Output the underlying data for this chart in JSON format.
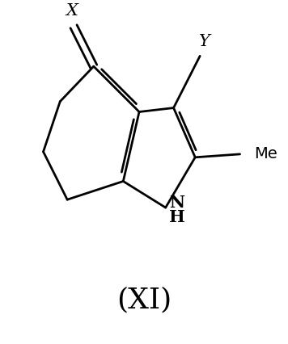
{
  "background_color": "#ffffff",
  "line_color": "#000000",
  "line_width": 2.0,
  "label_X": "X",
  "label_Y": "Y",
  "label_NH": "NH",
  "label_H": "H",
  "label_Me": "Me",
  "label_roman": "(XI)",
  "figsize": [
    3.56,
    4.26
  ],
  "dpi": 100
}
